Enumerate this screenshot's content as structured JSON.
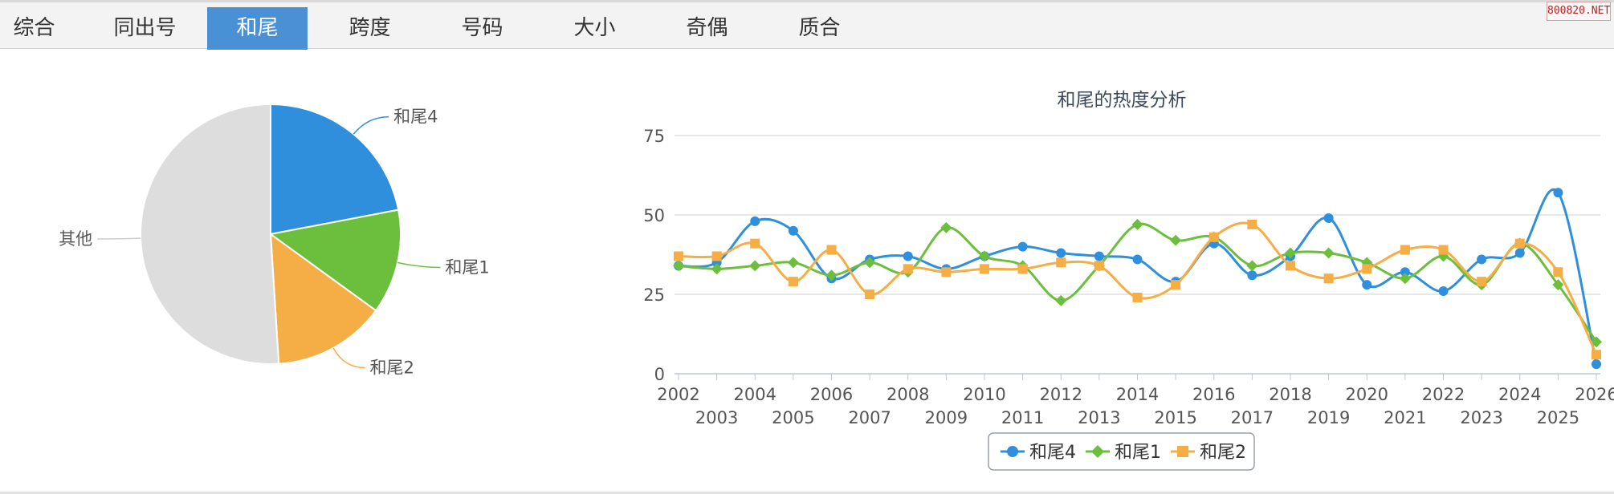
{
  "tabs": [
    {
      "label": "综合",
      "active": false
    },
    {
      "label": "同出号",
      "active": false
    },
    {
      "label": "和尾",
      "active": true
    },
    {
      "label": "跨度",
      "active": false
    },
    {
      "label": "号码",
      "active": false
    },
    {
      "label": "大小",
      "active": false
    },
    {
      "label": "奇偶",
      "active": false
    },
    {
      "label": "质合",
      "active": false
    }
  ],
  "watermark": "800820.NET",
  "chart_data": [
    {
      "type": "pie",
      "title": "",
      "slices": [
        {
          "label": "和尾4",
          "value": 22,
          "color": "#2f8fdc"
        },
        {
          "label": "和尾1",
          "value": 13,
          "color": "#6cbf3d"
        },
        {
          "label": "和尾2",
          "value": 14,
          "color": "#f5ad45"
        },
        {
          "label": "其他",
          "value": 51,
          "color": "#dddddd"
        }
      ]
    },
    {
      "type": "line",
      "title": "和尾的热度分析",
      "xlabel": "",
      "ylabel": "",
      "ylim": [
        0,
        75
      ],
      "yticks": [
        0,
        25,
        50,
        75
      ],
      "grid": true,
      "legend": "bottom-center",
      "x": [
        "2002",
        "2003",
        "2004",
        "2005",
        "2006",
        "2007",
        "2008",
        "2009",
        "2010",
        "2011",
        "2012",
        "2013",
        "2014",
        "2015",
        "2016",
        "2017",
        "2018",
        "2019",
        "2020",
        "2021",
        "2022",
        "2023",
        "2024",
        "2025",
        "2026"
      ],
      "series": [
        {
          "name": "和尾4",
          "color": "#2f8fdc",
          "marker": "circle",
          "values": [
            34,
            35,
            48,
            45,
            30,
            36,
            37,
            33,
            37,
            40,
            38,
            37,
            36,
            29,
            41,
            31,
            37,
            49,
            28,
            32,
            26,
            36,
            38,
            57,
            3
          ]
        },
        {
          "name": "和尾1",
          "color": "#6cbf3d",
          "marker": "diamond",
          "values": [
            34,
            33,
            34,
            35,
            31,
            35,
            32,
            46,
            37,
            34,
            23,
            34,
            47,
            42,
            43,
            34,
            38,
            38,
            35,
            30,
            37,
            28,
            41,
            28,
            10
          ]
        },
        {
          "name": "和尾2",
          "color": "#f5ad45",
          "marker": "square",
          "values": [
            37,
            37,
            41,
            29,
            39,
            25,
            33,
            32,
            33,
            33,
            35,
            34,
            24,
            28,
            43,
            47,
            34,
            30,
            33,
            39,
            39,
            29,
            41,
            32,
            6
          ]
        }
      ]
    }
  ]
}
